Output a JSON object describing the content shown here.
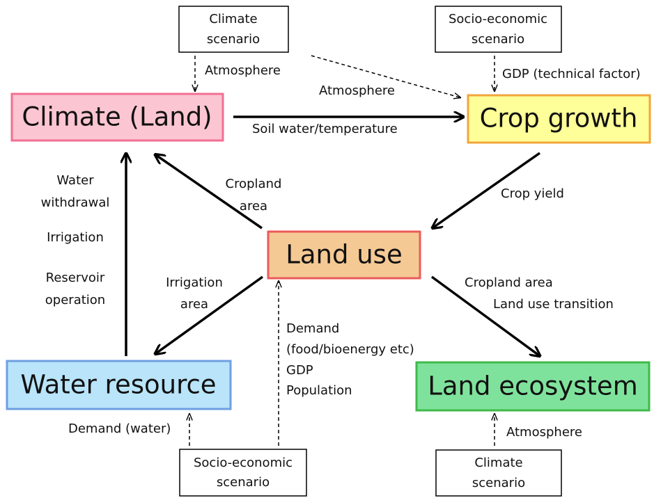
{
  "nodes": [
    {
      "label": "Climate (Land)"
    },
    {
      "label": "Crop growth"
    },
    {
      "label": "Land use"
    },
    {
      "label": "Water resource"
    },
    {
      "label": "Land ecosystem"
    }
  ],
  "scenarios": [
    {
      "lines": [
        "Climate",
        "scenario"
      ]
    },
    {
      "lines": [
        "Socio-economic",
        "scenario"
      ]
    },
    {
      "lines": [
        "Socio-economic",
        "scenario"
      ]
    },
    {
      "lines": [
        "Climate",
        "scenario"
      ]
    }
  ],
  "edge_labels": [
    {
      "lines": [
        "Atmosphere"
      ]
    },
    {
      "lines": [
        "Atmosphere"
      ]
    },
    {
      "lines": [
        "GDP (technical factor)"
      ]
    },
    {
      "lines": [
        "Soil water/temperature"
      ]
    },
    {
      "lines": [
        "Crop yield"
      ]
    },
    {
      "lines": [
        "Cropland",
        "area"
      ]
    },
    {
      "lines": [
        "Water",
        "withdrawal"
      ]
    },
    {
      "lines": [
        "Irrigation"
      ]
    },
    {
      "lines": [
        "Reservoir",
        "operation"
      ]
    },
    {
      "lines": [
        "Irrigation",
        "area"
      ]
    },
    {
      "lines": [
        "Demand",
        "(food/bioenergy etc)",
        "GDP",
        "Population"
      ]
    },
    {
      "lines": [
        "Cropland area"
      ]
    },
    {
      "lines": [
        "Land use transition"
      ]
    },
    {
      "lines": [
        "Demand (water)"
      ]
    },
    {
      "lines": [
        "Atmosphere"
      ]
    }
  ]
}
